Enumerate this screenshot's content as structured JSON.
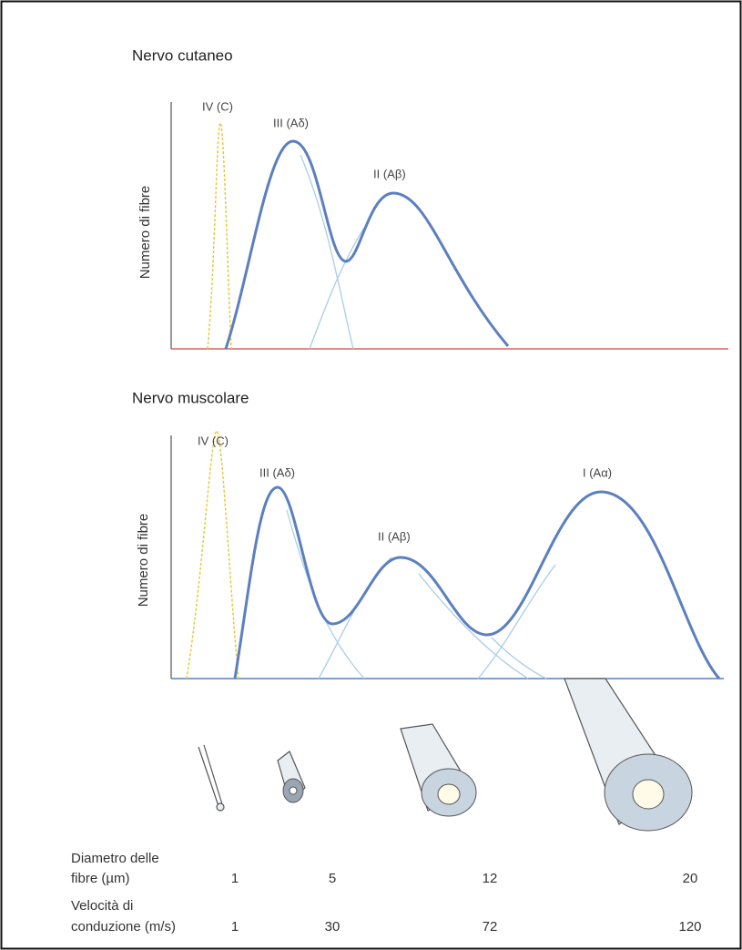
{
  "panels": [
    {
      "title": "Nervo cutaneo",
      "y_label": "Numero di fibre",
      "peaks": [
        "IV (C)",
        "III (Aδ)",
        "II (Aβ)"
      ]
    },
    {
      "title": "Nervo muscolare",
      "y_label": "Numero di fibre",
      "peaks": [
        "IV (C)",
        "III (Aδ)",
        "II (Aβ)",
        "I (Aα)"
      ]
    }
  ],
  "table": {
    "rows": [
      {
        "label_lines": [
          "Diametro delle",
          "fibre (µm)"
        ],
        "values": [
          1,
          5,
          12,
          20
        ]
      },
      {
        "label_lines": [
          "Velocità di",
          "conduzione (m/s)"
        ],
        "values": [
          1,
          30,
          72,
          120
        ]
      }
    ]
  }
}
